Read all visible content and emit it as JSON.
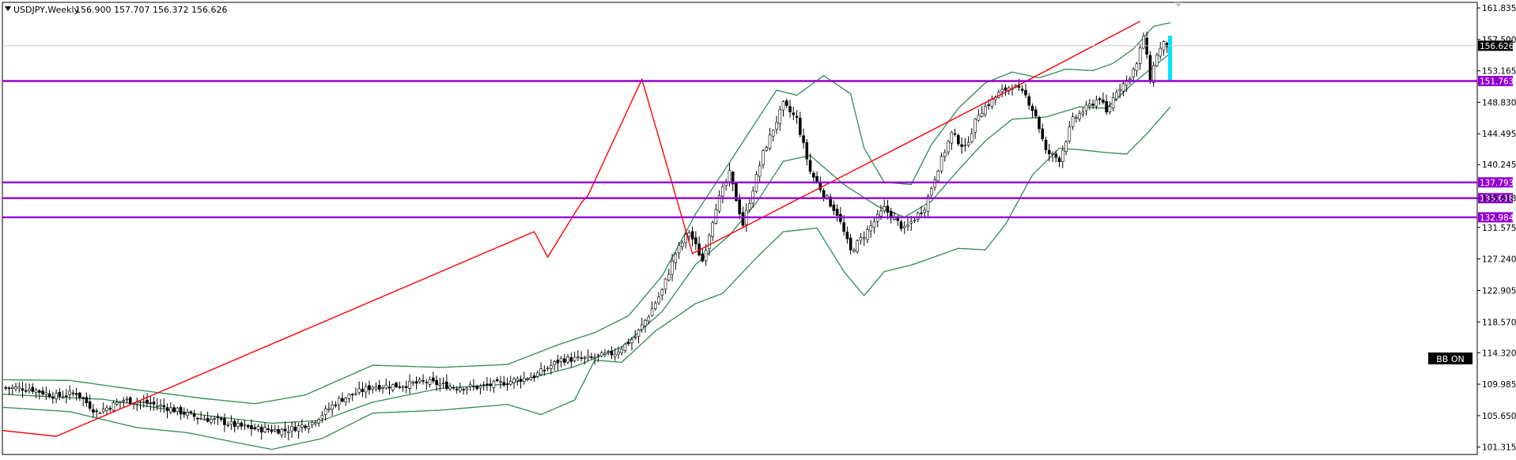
{
  "header": {
    "symbol": "USDJPY,Weekly",
    "ohlc": "156.900 157.707 156.372 156.626"
  },
  "indicator_badge": "BB ON",
  "price_tag": "156.626",
  "colors": {
    "bollinger": "#2e8b57",
    "trend": "#ff0000",
    "level": "#9400d3",
    "current_bar": "#00e5ff",
    "candle_up": "#ffffff",
    "candle_down": "#000000",
    "axis_text": "#000000"
  },
  "chart_data": {
    "type": "candlestick",
    "title": "USDJPY,Weekly",
    "ylim": [
      100.3,
      162.6
    ],
    "y_ticks": [
      "161.835",
      "157.500",
      "153.165",
      "148.830",
      "144.495",
      "140.245",
      "135.618",
      "131.575",
      "127.240",
      "122.905",
      "118.570",
      "114.320",
      "109.985",
      "105.650",
      "101.315"
    ],
    "horizontal_levels": [
      {
        "value": 151.763,
        "label": "151.763"
      },
      {
        "value": 137.793,
        "label": "137.793"
      },
      {
        "value": 135.618,
        "label": "135.618"
      },
      {
        "value": 132.984,
        "label": "132.984"
      }
    ],
    "current_price": 156.626,
    "price_path": [
      [
        0,
        109.5
      ],
      [
        8,
        109.4
      ],
      [
        16,
        108.3
      ],
      [
        22,
        108.8
      ],
      [
        28,
        106.1
      ],
      [
        36,
        107.8
      ],
      [
        44,
        107.3
      ],
      [
        50,
        106.6
      ],
      [
        58,
        105.4
      ],
      [
        64,
        105.0
      ],
      [
        70,
        104.2
      ],
      [
        76,
        103.8
      ],
      [
        84,
        103.6
      ],
      [
        92,
        104.7
      ],
      [
        100,
        107.8
      ],
      [
        110,
        109.7
      ],
      [
        118,
        109.8
      ],
      [
        126,
        110.3
      ],
      [
        134,
        109.6
      ],
      [
        142,
        109.6
      ],
      [
        150,
        110.3
      ],
      [
        158,
        111.1
      ],
      [
        166,
        113.4
      ],
      [
        174,
        113.5
      ],
      [
        182,
        114.3
      ],
      [
        188,
        116.5
      ],
      [
        192,
        119.5
      ],
      [
        196,
        122.9
      ],
      [
        200,
        128.0
      ],
      [
        204,
        131.0
      ],
      [
        208,
        127.0
      ],
      [
        212,
        134.5
      ],
      [
        216,
        139.0
      ],
      [
        220,
        132.0
      ],
      [
        226,
        141.8
      ],
      [
        232,
        148.5
      ],
      [
        236,
        146.5
      ],
      [
        240,
        139.3
      ],
      [
        244,
        136.2
      ],
      [
        248,
        133.5
      ],
      [
        252,
        128.3
      ],
      [
        256,
        130.5
      ],
      [
        262,
        134.2
      ],
      [
        268,
        131.3
      ],
      [
        274,
        134.4
      ],
      [
        278,
        139.8
      ],
      [
        282,
        144.5
      ],
      [
        286,
        142.5
      ],
      [
        290,
        147.3
      ],
      [
        296,
        150.0
      ],
      [
        300,
        151.2
      ],
      [
        304,
        149.7
      ],
      [
        307,
        147.0
      ],
      [
        310,
        142.0
      ],
      [
        314,
        141.0
      ],
      [
        318,
        146.4
      ],
      [
        322,
        148.0
      ],
      [
        326,
        149.5
      ],
      [
        328,
        147.3
      ],
      [
        331,
        150.5
      ],
      [
        334,
        151.8
      ],
      [
        337,
        154.0
      ],
      [
        339,
        158.0
      ],
      [
        341,
        152.0
      ],
      [
        343,
        155.5
      ],
      [
        345,
        156.8
      ],
      [
        347,
        156.626
      ]
    ],
    "bollinger_mid": [
      [
        0,
        108.6
      ],
      [
        30,
        107.9
      ],
      [
        60,
        105.7
      ],
      [
        80,
        104.6
      ],
      [
        95,
        105.0
      ],
      [
        110,
        107.5
      ],
      [
        130,
        109.4
      ],
      [
        150,
        110.0
      ],
      [
        170,
        112.4
      ],
      [
        184,
        115.1
      ],
      [
        196,
        120.0
      ],
      [
        206,
        126.5
      ],
      [
        216,
        130.5
      ],
      [
        224,
        135.0
      ],
      [
        232,
        140.7
      ],
      [
        240,
        141.5
      ],
      [
        250,
        137.5
      ],
      [
        260,
        134.5
      ],
      [
        268,
        133.0
      ],
      [
        276,
        135.2
      ],
      [
        284,
        139.5
      ],
      [
        292,
        143.5
      ],
      [
        300,
        146.5
      ],
      [
        310,
        146.8
      ],
      [
        320,
        148.2
      ],
      [
        328,
        148.0
      ],
      [
        336,
        151.5
      ],
      [
        347,
        155.6
      ]
    ],
    "bollinger_upper": [
      [
        0,
        110.6
      ],
      [
        20,
        110.5
      ],
      [
        40,
        109.2
      ],
      [
        60,
        108.0
      ],
      [
        75,
        107.3
      ],
      [
        90,
        108.5
      ],
      [
        110,
        112.6
      ],
      [
        130,
        112.3
      ],
      [
        150,
        112.7
      ],
      [
        165,
        115.4
      ],
      [
        176,
        117.1
      ],
      [
        186,
        119.4
      ],
      [
        196,
        124.9
      ],
      [
        206,
        133.5
      ],
      [
        214,
        139.1
      ],
      [
        222,
        144.8
      ],
      [
        230,
        150.5
      ],
      [
        236,
        149.8
      ],
      [
        244,
        152.5
      ],
      [
        252,
        150.0
      ],
      [
        256,
        142.5
      ],
      [
        262,
        137.8
      ],
      [
        270,
        137.5
      ],
      [
        276,
        143.0
      ],
      [
        284,
        148.0
      ],
      [
        292,
        151.5
      ],
      [
        300,
        153.0
      ],
      [
        308,
        152.2
      ],
      [
        316,
        153.4
      ],
      [
        324,
        153.2
      ],
      [
        330,
        154.2
      ],
      [
        336,
        156.2
      ],
      [
        342,
        159.3
      ],
      [
        347,
        159.8
      ]
    ],
    "bollinger_lower": [
      [
        0,
        106.8
      ],
      [
        20,
        106.2
      ],
      [
        40,
        104.0
      ],
      [
        55,
        103.3
      ],
      [
        70,
        101.9
      ],
      [
        80,
        101.0
      ],
      [
        95,
        102.5
      ],
      [
        110,
        106.0
      ],
      [
        130,
        106.4
      ],
      [
        150,
        107.2
      ],
      [
        160,
        105.8
      ],
      [
        170,
        107.8
      ],
      [
        176,
        113.3
      ],
      [
        184,
        113.0
      ],
      [
        194,
        117.3
      ],
      [
        206,
        121.1
      ],
      [
        214,
        122.5
      ],
      [
        224,
        127.4
      ],
      [
        232,
        131.0
      ],
      [
        242,
        131.5
      ],
      [
        250,
        125.5
      ],
      [
        256,
        122.2
      ],
      [
        262,
        125.5
      ],
      [
        270,
        126.4
      ],
      [
        278,
        127.7
      ],
      [
        284,
        128.7
      ],
      [
        292,
        128.5
      ],
      [
        298,
        132.0
      ],
      [
        306,
        138.8
      ],
      [
        314,
        142.5
      ],
      [
        320,
        142.3
      ],
      [
        328,
        141.9
      ],
      [
        334,
        141.7
      ],
      [
        340,
        144.5
      ],
      [
        347,
        148.2
      ]
    ],
    "trend_lines": [
      [
        [
          0,
          103.6
        ],
        [
          16,
          102.8
        ],
        [
          158,
          131.0
        ],
        [
          162,
          127.5
        ],
        [
          172,
          135.0
        ],
        [
          174,
          136.0
        ],
        [
          190,
          152.0
        ],
        [
          205,
          128.0
        ],
        [
          295,
          149.5
        ],
        [
          338,
          160.0
        ]
      ]
    ]
  }
}
